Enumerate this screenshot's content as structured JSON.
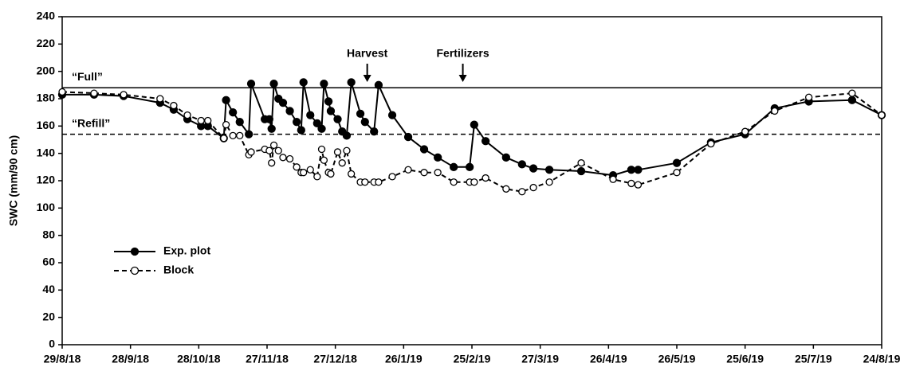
{
  "chart_data": {
    "type": "line",
    "y_label": "SWC (mm/90 cm)",
    "x": [
      "2018-08-29",
      "2018-09-12",
      "2018-09-25",
      "2018-10-11",
      "2018-10-17",
      "2018-10-23",
      "2018-10-29",
      "2018-11-01",
      "2018-11-08",
      "2018-11-09",
      "2018-11-12",
      "2018-11-15",
      "2018-11-19",
      "2018-11-20",
      "2018-11-26",
      "2018-11-28",
      "2018-11-29",
      "2018-11-30",
      "2018-12-02",
      "2018-12-04",
      "2018-12-07",
      "2018-12-10",
      "2018-12-12",
      "2018-12-13",
      "2018-12-16",
      "2018-12-19",
      "2018-12-21",
      "2018-12-22",
      "2018-12-24",
      "2018-12-25",
      "2018-12-28",
      "2018-12-30",
      "2019-01-01",
      "2019-01-03",
      "2019-01-07",
      "2019-01-09",
      "2019-01-13",
      "2019-01-15",
      "2019-01-21",
      "2019-01-28",
      "2019-02-04",
      "2019-02-10",
      "2019-02-17",
      "2019-02-24",
      "2019-02-26",
      "2019-03-03",
      "2019-03-12",
      "2019-03-19",
      "2019-03-24",
      "2019-03-31",
      "2019-04-14",
      "2019-04-28",
      "2019-05-06",
      "2019-05-09",
      "2019-05-26",
      "2019-06-10",
      "2019-06-25",
      "2019-07-08",
      "2019-07-23",
      "2019-08-11",
      "2019-08-24"
    ],
    "series": [
      {
        "name": "Exp. plot",
        "color": "#000000",
        "line_style": "solid",
        "marker": "filled",
        "values": [
          183,
          183,
          182,
          177,
          172,
          165,
          160,
          160,
          151,
          179,
          170,
          163,
          154,
          191,
          165,
          165,
          158,
          191,
          180,
          177,
          171,
          163,
          157,
          192,
          168,
          162,
          158,
          191,
          178,
          171,
          165,
          156,
          153,
          192,
          169,
          163,
          156,
          190,
          168,
          152,
          143,
          137,
          130,
          130,
          161,
          149,
          137,
          132,
          129,
          128,
          127,
          124,
          128,
          128,
          133,
          148,
          154,
          173,
          178,
          179,
          168
        ]
      },
      {
        "name": "Block",
        "color": "#000000",
        "line_style": "dashed",
        "marker": "open",
        "values": [
          185,
          184,
          183,
          180,
          175,
          168,
          164,
          164,
          151,
          161,
          153,
          153,
          139,
          141,
          143,
          142,
          133,
          146,
          142,
          137,
          136,
          130,
          126,
          126,
          128,
          123,
          143,
          135,
          126,
          125,
          141,
          133,
          142,
          125,
          119,
          119,
          119,
          119,
          123,
          128,
          126,
          126,
          119,
          119,
          119,
          122,
          114,
          112,
          115,
          119,
          133,
          121,
          118,
          117,
          126,
          147,
          156,
          171,
          181,
          184,
          168
        ]
      }
    ],
    "xlim": [
      "2018-08-29",
      "2019-08-24"
    ],
    "xticks": [
      {
        "value": "2018-08-29",
        "label": "29/8/18"
      },
      {
        "value": "2018-09-28",
        "label": "28/9/18"
      },
      {
        "value": "2018-10-28",
        "label": "28/10/18"
      },
      {
        "value": "2018-11-27",
        "label": "27/11/18"
      },
      {
        "value": "2018-12-27",
        "label": "27/12/18"
      },
      {
        "value": "2019-01-26",
        "label": "26/1/19"
      },
      {
        "value": "2019-02-25",
        "label": "25/2/19"
      },
      {
        "value": "2019-03-27",
        "label": "27/3/19"
      },
      {
        "value": "2019-04-26",
        "label": "26/4/19"
      },
      {
        "value": "2019-05-26",
        "label": "26/5/19"
      },
      {
        "value": "2019-06-25",
        "label": "25/6/19"
      },
      {
        "value": "2019-07-25",
        "label": "25/7/19"
      },
      {
        "value": "2019-08-24",
        "label": "24/8/19"
      }
    ],
    "ylim": [
      0,
      240
    ],
    "yticks": [
      0,
      20,
      40,
      60,
      80,
      100,
      120,
      140,
      160,
      180,
      200,
      220,
      240
    ],
    "reference_lines": [
      {
        "label": "“Full”",
        "value": 188,
        "line_style": "solid"
      },
      {
        "label": "“Refill”",
        "value": 154,
        "line_style": "dashed"
      }
    ],
    "annotations": [
      {
        "text": "Harvest",
        "x": "2019-01-10"
      },
      {
        "text": "Fertilizers",
        "x": "2019-02-21"
      }
    ],
    "legend": "lower left"
  }
}
